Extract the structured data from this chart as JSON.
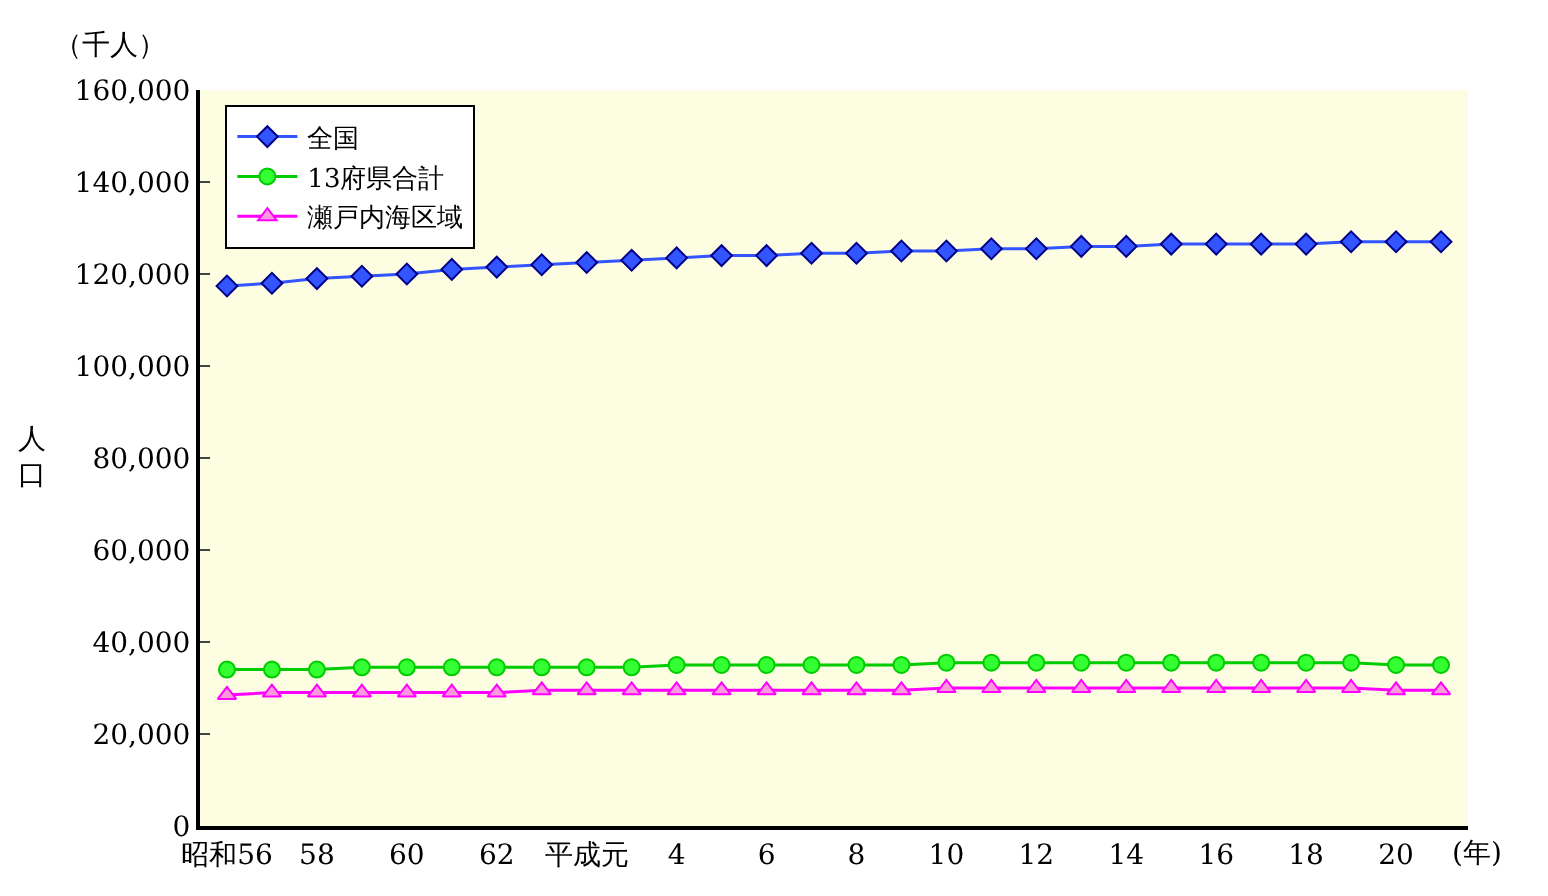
{
  "chart_data": {
    "type": "line",
    "ylabel": "人口",
    "annotations": [
      "（千人）",
      "(年)"
    ],
    "categories": [
      "昭和56",
      null,
      "58",
      null,
      "60",
      null,
      "62",
      null,
      "平成元",
      null,
      "4",
      null,
      "6",
      null,
      "8",
      null,
      "10",
      null,
      "12",
      null,
      "14",
      null,
      "16",
      null,
      "18",
      null,
      "20",
      null
    ],
    "series": [
      {
        "name": "全国",
        "color": "#3355ff",
        "marker": "diamond",
        "values": [
          117400,
          118000,
          119000,
          119500,
          120000,
          121000,
          121500,
          122000,
          122500,
          123000,
          123500,
          124000,
          124000,
          124500,
          124500,
          125000,
          125000,
          125500,
          125500,
          126000,
          126000,
          126500,
          126500,
          126500,
          126500,
          127000,
          127000,
          127000
        ]
      },
      {
        "name": "13府県合計",
        "color": "#00cc00",
        "marker": "circle",
        "values": [
          34000,
          34000,
          34000,
          34500,
          34500,
          34500,
          34500,
          34500,
          34500,
          34500,
          35000,
          35000,
          35000,
          35000,
          35000,
          35000,
          35500,
          35500,
          35500,
          35500,
          35500,
          35500,
          35500,
          35500,
          35500,
          35500,
          35000,
          35000
        ]
      },
      {
        "name": "瀬戸内海区域",
        "color": "#ff00ff",
        "marker": "triangle",
        "values": [
          28500,
          29000,
          29000,
          29000,
          29000,
          29000,
          29000,
          29500,
          29500,
          29500,
          29500,
          29500,
          29500,
          29500,
          29500,
          29500,
          30000,
          30000,
          30000,
          30000,
          30000,
          30000,
          30000,
          30000,
          30000,
          30000,
          29500,
          29500
        ]
      }
    ],
    "ylim": [
      0,
      160000
    ],
    "yticks": [
      {
        "value": 0,
        "label": "0"
      },
      {
        "value": 20000,
        "label": "20,000"
      },
      {
        "value": 40000,
        "label": "40,000"
      },
      {
        "value": 60000,
        "label": "60,000"
      },
      {
        "value": 80000,
        "label": "80,000"
      },
      {
        "value": 100000,
        "label": "100,000"
      },
      {
        "value": 120000,
        "label": "120,000"
      },
      {
        "value": 140000,
        "label": "140,000"
      },
      {
        "value": 160000,
        "label": "160,000"
      }
    ],
    "grid": false,
    "legend": "top left"
  }
}
